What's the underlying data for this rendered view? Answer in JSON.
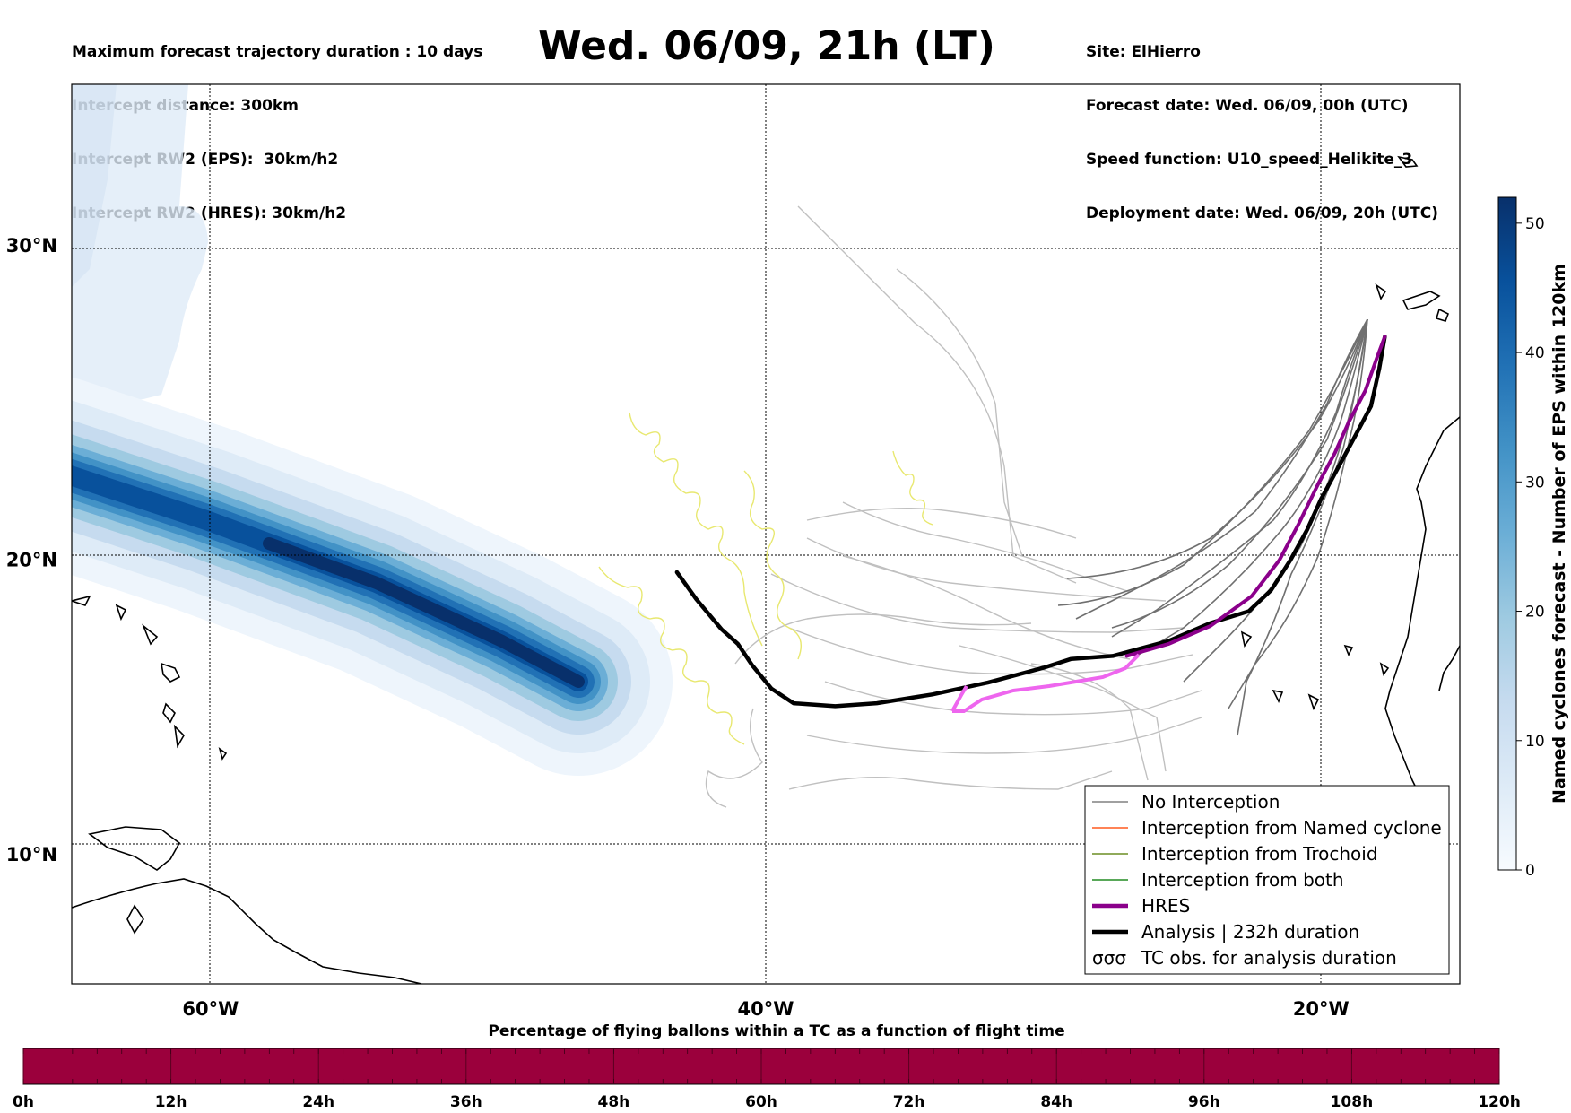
{
  "header": {
    "left_lines": [
      "Maximum forecast trajectory duration : 10 days",
      "Intercept distance: 300km",
      "Intercept RW2 (EPS):  30km/h2",
      "Intercept RW2 (HRES): 30km/h2"
    ],
    "title": "Wed. 06/09, 21h (LT)",
    "right_lines": [
      "Site: ElHierro",
      "Forecast date: Wed. 06/09, 00h (UTC)",
      "Speed function: U10_speed_Helikite_3",
      "Deployment date: Wed. 06/09, 20h (UTC)"
    ]
  },
  "chart_data": [
    {
      "type": "map",
      "x_range": [
        -65,
        -15
      ],
      "y_range": [
        5.5,
        34.8
      ],
      "x_ticks": [
        {
          "value": -60,
          "label": "60°W"
        },
        {
          "value": -40,
          "label": "40°W"
        },
        {
          "value": -20,
          "label": "20°W"
        }
      ],
      "y_ticks": [
        {
          "value": 30,
          "label": "30°N"
        },
        {
          "value": 20,
          "label": "20°N"
        },
        {
          "value": 10,
          "label": "10°N"
        }
      ],
      "grid": true,
      "legend_position": "bottom-right",
      "legend": [
        {
          "label": "No Interception",
          "color": "#808080",
          "style": "thin"
        },
        {
          "label": "Interception from Named cyclone",
          "color": "#ff5a1f",
          "style": "thin"
        },
        {
          "label": "Interception from Trochoid",
          "color": "#6b8e23",
          "style": "thin"
        },
        {
          "label": "Interception from both",
          "color": "#228b22",
          "style": "thin"
        },
        {
          "label": "HRES",
          "color": "#8b008b",
          "style": "thick"
        },
        {
          "label": "Analysis | 232h duration",
          "color": "#000000",
          "style": "thick"
        },
        {
          "label": "TC obs. for analysis duration",
          "color": "#000000",
          "style": "loops"
        }
      ],
      "series": [
        {
          "name": "Analysis | 232h duration",
          "color": "#000000",
          "points": [
            [
              -17.7,
              27.2
            ],
            [
              -17.9,
              26.2
            ],
            [
              -18.2,
              25.0
            ],
            [
              -18.8,
              24.0
            ],
            [
              -19.4,
              23.0
            ],
            [
              -20.0,
              22.0
            ],
            [
              -20.5,
              21.0
            ],
            [
              -21.1,
              20.0
            ],
            [
              -21.8,
              19.0
            ],
            [
              -22.6,
              18.3
            ],
            [
              -24.0,
              17.9
            ],
            [
              -25.5,
              17.3
            ],
            [
              -27.5,
              16.8
            ],
            [
              -29.0,
              16.7
            ],
            [
              -30.0,
              16.4
            ],
            [
              -32.0,
              15.9
            ],
            [
              -34.0,
              15.5
            ],
            [
              -36.0,
              15.2
            ],
            [
              -37.5,
              15.1
            ],
            [
              -39.0,
              15.2
            ],
            [
              -39.8,
              15.7
            ],
            [
              -40.5,
              16.5
            ],
            [
              -41.0,
              17.2
            ],
            [
              -41.6,
              17.7
            ],
            [
              -42.5,
              18.7
            ],
            [
              -43.2,
              19.6
            ]
          ]
        },
        {
          "name": "HRES",
          "color": "#8b008b",
          "points": [
            [
              -17.7,
              27.2
            ],
            [
              -18.0,
              26.5
            ],
            [
              -18.4,
              25.5
            ],
            [
              -19.0,
              24.5
            ],
            [
              -19.5,
              23.5
            ],
            [
              -20.1,
              22.5
            ],
            [
              -20.8,
              21.2
            ],
            [
              -21.5,
              20.0
            ],
            [
              -22.5,
              18.8
            ],
            [
              -24.0,
              17.8
            ],
            [
              -25.5,
              17.2
            ],
            [
              -27.0,
              16.8
            ]
          ]
        }
      ],
      "tc_obs": [
        {
          "lon": [
            -45.0,
            -40.0
          ],
          "lat": [
            24.7,
            16.0
          ]
        },
        {
          "lon": [
            -46.0,
            -41.0
          ],
          "lat": [
            19.3,
            16.5
          ]
        },
        {
          "lon": [
            -42.0,
            -38.8
          ],
          "lat": [
            22.8,
            16.0
          ]
        },
        {
          "lon": [
            -33.1,
            -32.0
          ],
          "lat": [
            23.4,
            21.0
          ]
        }
      ],
      "cyclone_density_band": {
        "path_start": [
          -65,
          22.0
        ],
        "path_end": [
          -46.5,
          15.2
        ],
        "max_value": 52
      }
    },
    {
      "type": "colorbar",
      "label": "Named cyclones forecast - Number of EPS within 120km",
      "range": [
        0,
        52
      ],
      "ticks": [
        0,
        10,
        20,
        30,
        40,
        50
      ],
      "colors": [
        "#f7fbff",
        "#deebf7",
        "#c6dbef",
        "#9ecae1",
        "#6baed6",
        "#4292c6",
        "#2171b5",
        "#08519c",
        "#08306b"
      ]
    },
    {
      "type": "bar",
      "title": "Percentage of flying ballons within a TC as a function of flight time",
      "x_ticks": [
        "0h",
        "12h",
        "24h",
        "36h",
        "48h",
        "60h",
        "72h",
        "84h",
        "96h",
        "108h",
        "120h"
      ],
      "x_range": [
        0,
        120
      ],
      "color": "#9b003c"
    }
  ]
}
